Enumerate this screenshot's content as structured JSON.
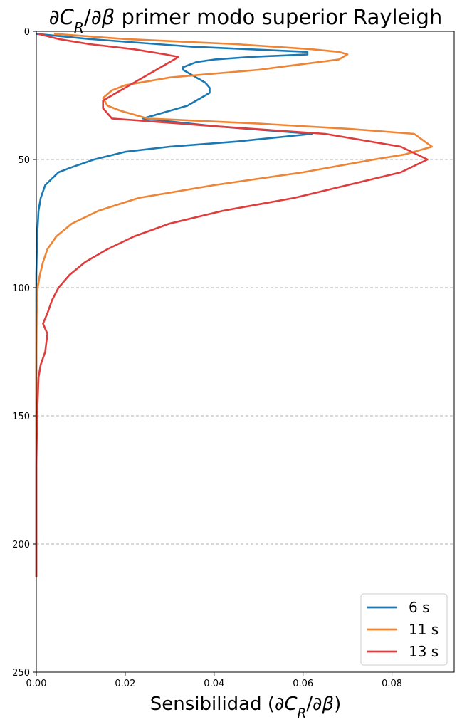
{
  "chart_data": {
    "type": "line",
    "title": "∂C_R/∂β primer modo superior Rayleigh",
    "xlabel": "Sensibilidad (∂C_R/∂β)",
    "ylabel": "",
    "xlim": [
      0,
      0.094
    ],
    "ylim": [
      250,
      0
    ],
    "y_inverted": true,
    "x_ticks": [
      0,
      0.02,
      0.04,
      0.06,
      0.08
    ],
    "x_tick_labels": [
      "0.00",
      "0.02",
      "0.04",
      "0.06",
      "0.08"
    ],
    "y_ticks": [
      0,
      50,
      100,
      150,
      200,
      250
    ],
    "y_tick_labels": [
      "0",
      "50",
      "100",
      "150",
      "200",
      "250"
    ],
    "grid": "horizontal dashed",
    "legend_position": "lower-right",
    "series": [
      {
        "name": "6 s",
        "color": "#1a78b3",
        "points": [
          [
            0.0,
            1
          ],
          [
            0.012,
            3
          ],
          [
            0.035,
            6
          ],
          [
            0.061,
            8
          ],
          [
            0.061,
            9
          ],
          [
            0.048,
            10
          ],
          [
            0.04,
            11
          ],
          [
            0.036,
            12
          ],
          [
            0.033,
            14
          ],
          [
            0.033,
            15
          ],
          [
            0.035,
            17
          ],
          [
            0.038,
            20
          ],
          [
            0.039,
            22
          ],
          [
            0.039,
            24
          ],
          [
            0.037,
            26
          ],
          [
            0.034,
            29
          ],
          [
            0.03,
            31
          ],
          [
            0.024,
            34
          ],
          [
            0.04,
            37
          ],
          [
            0.062,
            40
          ],
          [
            0.045,
            43
          ],
          [
            0.03,
            45
          ],
          [
            0.02,
            47
          ],
          [
            0.013,
            50
          ],
          [
            0.008,
            53
          ],
          [
            0.005,
            55
          ],
          [
            0.002,
            60
          ],
          [
            0.001,
            65
          ],
          [
            0.0005,
            70
          ],
          [
            0.0002,
            80
          ],
          [
            0.0,
            95
          ],
          [
            0.0,
            120
          ],
          [
            0.0,
            213
          ]
        ]
      },
      {
        "name": "11 s",
        "color": "#ef8434",
        "points": [
          [
            0.004,
            1
          ],
          [
            0.02,
            3
          ],
          [
            0.045,
            5
          ],
          [
            0.062,
            7
          ],
          [
            0.068,
            8
          ],
          [
            0.07,
            9
          ],
          [
            0.068,
            11
          ],
          [
            0.05,
            15
          ],
          [
            0.03,
            18
          ],
          [
            0.02,
            21
          ],
          [
            0.017,
            23
          ],
          [
            0.015,
            26
          ],
          [
            0.016,
            29
          ],
          [
            0.019,
            31
          ],
          [
            0.025,
            34
          ],
          [
            0.05,
            36
          ],
          [
            0.07,
            38
          ],
          [
            0.085,
            40
          ],
          [
            0.089,
            45
          ],
          [
            0.083,
            48
          ],
          [
            0.076,
            50
          ],
          [
            0.06,
            55
          ],
          [
            0.04,
            60
          ],
          [
            0.023,
            65
          ],
          [
            0.014,
            70
          ],
          [
            0.008,
            75
          ],
          [
            0.0045,
            80
          ],
          [
            0.0025,
            85
          ],
          [
            0.0015,
            90
          ],
          [
            0.0008,
            95
          ],
          [
            0.0003,
            100
          ],
          [
            0.0001,
            110
          ],
          [
            0.0,
            130
          ],
          [
            0.0,
            213
          ]
        ]
      },
      {
        "name": "13 s",
        "color": "#e03c3c",
        "points": [
          [
            0.0005,
            1
          ],
          [
            0.005,
            3
          ],
          [
            0.012,
            5
          ],
          [
            0.022,
            7
          ],
          [
            0.029,
            9
          ],
          [
            0.032,
            10
          ],
          [
            0.03,
            12
          ],
          [
            0.026,
            16
          ],
          [
            0.022,
            20
          ],
          [
            0.018,
            24
          ],
          [
            0.015,
            27
          ],
          [
            0.015,
            30
          ],
          [
            0.017,
            34
          ],
          [
            0.04,
            37
          ],
          [
            0.065,
            40
          ],
          [
            0.082,
            45
          ],
          [
            0.088,
            50
          ],
          [
            0.082,
            55
          ],
          [
            0.07,
            60
          ],
          [
            0.058,
            65
          ],
          [
            0.042,
            70
          ],
          [
            0.03,
            75
          ],
          [
            0.022,
            80
          ],
          [
            0.016,
            85
          ],
          [
            0.011,
            90
          ],
          [
            0.0075,
            95
          ],
          [
            0.005,
            100
          ],
          [
            0.0035,
            105
          ],
          [
            0.0025,
            110
          ],
          [
            0.0015,
            114
          ],
          [
            0.0025,
            118
          ],
          [
            0.002,
            125
          ],
          [
            0.001,
            130
          ],
          [
            0.0005,
            135
          ],
          [
            0.0002,
            150
          ],
          [
            0.0,
            170
          ],
          [
            0.0,
            213
          ]
        ]
      }
    ]
  }
}
